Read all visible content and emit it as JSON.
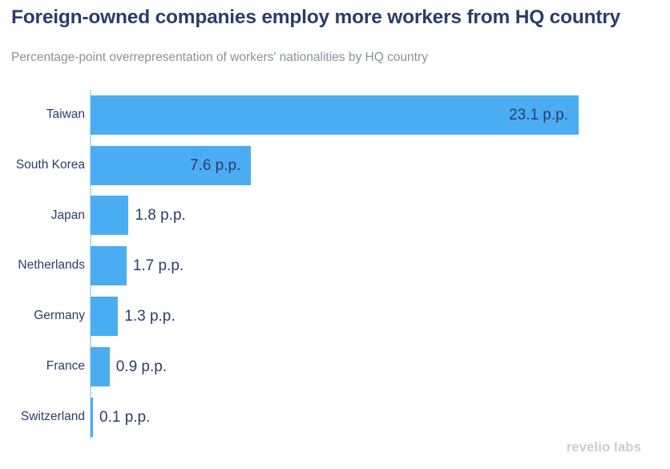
{
  "header": {
    "title": "Foreign-owned companies employ more workers from HQ country",
    "subtitle": "Percentage-point overrepresentation of workers' nationalities by HQ country"
  },
  "chart_data": {
    "type": "bar",
    "orientation": "horizontal",
    "title": "Foreign-owned companies employ more workers from HQ country",
    "subtitle": "Percentage-point overrepresentation of workers' nationalities by HQ country",
    "categories": [
      "Taiwan",
      "South Korea",
      "Japan",
      "Netherlands",
      "Germany",
      "France",
      "Switzerland"
    ],
    "values": [
      23.1,
      7.6,
      1.8,
      1.7,
      1.3,
      0.9,
      0.1
    ],
    "value_labels": [
      "23.1 p.p.",
      "7.6 p.p.",
      "1.8 p.p.",
      "1.7 p.p.",
      "1.3 p.p.",
      "0.9 p.p.",
      "0.1 p.p."
    ],
    "unit": "p.p.",
    "xlim": [
      0,
      23.1
    ],
    "grid": false,
    "legend": "none",
    "colors": {
      "bar": "#4aadf2",
      "label": "#2b3d68",
      "axis_line": "#b9dcf7"
    }
  },
  "footer": {
    "logo_text": "revelio labs"
  }
}
